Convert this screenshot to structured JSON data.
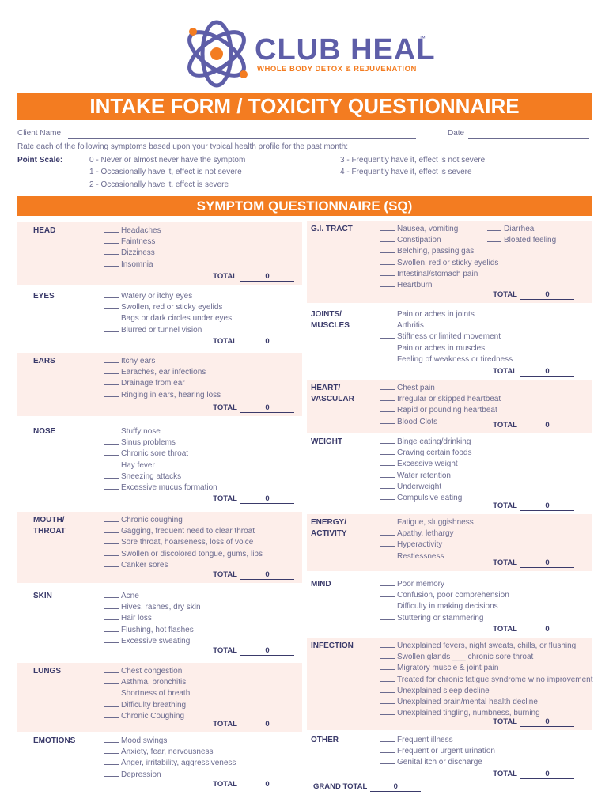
{
  "header": {
    "brand": "CLUB HEAL",
    "trademark": "™",
    "tagline": "WHOLE BODY DETOX & REJUVENATION"
  },
  "title": "INTAKE FORM / TOXICITY QUESTIONNAIRE",
  "client_name_label": "Client Name",
  "date_label": "Date",
  "instructions": "Rate each of the following symptoms based upon your typical health profile for the past month:",
  "point_scale": {
    "label": "Point Scale:",
    "items": [
      "0 - Never or almost never have the symptom",
      "1 - Occasionally have it, effect is not severe",
      "2 - Occasionally have it, effect is severe",
      "3 - Frequently have it, effect is not severe",
      "4 - Frequently have it, effect is severe"
    ]
  },
  "section_title": "SYMPTOM QUESTIONNAIRE (SQ)",
  "total_label": "TOTAL",
  "left_sections": [
    {
      "name": "HEAD",
      "items": [
        "Headaches",
        "Faintness",
        "Dizziness",
        "Insomnia"
      ],
      "total": 0
    },
    {
      "name": "EYES",
      "items": [
        "Watery or itchy eyes",
        "Swollen, red or sticky eyelids",
        "Bags or dark circles under eyes",
        "Blurred or tunnel vision"
      ],
      "total": 0
    },
    {
      "name": "EARS",
      "items": [
        "Itchy ears",
        "Earaches, ear infections",
        "Drainage from ear",
        "Ringing in ears, hearing loss"
      ],
      "total": 0
    },
    {
      "name": "NOSE",
      "items": [
        "Stuffy nose",
        "Sinus problems",
        "Chronic sore throat",
        "Hay fever",
        "Sneezing attacks",
        "Excessive mucus formation"
      ],
      "total": 0
    },
    {
      "name": "MOUTH/\nTHROAT",
      "items": [
        "Chronic coughing",
        "Gagging, frequent need to clear throat",
        "Sore throat, hoarseness, loss of voice",
        "Swollen or discolored tongue, gums, lips",
        "Canker sores"
      ],
      "total": 0
    },
    {
      "name": "SKIN",
      "items": [
        "Acne",
        "Hives, rashes, dry skin",
        "Hair loss",
        "Flushing, hot flashes",
        "Excessive sweating"
      ],
      "total": 0
    },
    {
      "name": "LUNGS",
      "items": [
        "Chest congestion",
        "Asthma, bronchitis",
        "Shortness of breath",
        "Difficulty breathing",
        "Chronic Coughing"
      ],
      "total": 0
    },
    {
      "name": "EMOTIONS",
      "items": [
        "Mood swings",
        "Anxiety, fear, nervousness",
        "Anger, irritability, aggressiveness",
        "Depression"
      ],
      "total": 0
    }
  ],
  "right_sections": [
    {
      "name": "G.I. TRACT",
      "items": [
        "Nausea, vomiting",
        "Constipation",
        "Belching, passing gas",
        "Swollen, red or sticky eyelids",
        "Intestinal/stomach pain",
        "Heartburn"
      ],
      "items_right": [
        "Diarrhea",
        "Bloated feeling"
      ],
      "total": 0
    },
    {
      "name": "JOINTS/\nMUSCLES",
      "items": [
        "Pain or aches in joints",
        "Arthritis",
        "Stiffness or limited movement",
        "Pain or aches in muscles",
        "Feeling of weakness or tiredness"
      ],
      "total": 0
    },
    {
      "name": "HEART/\nVASCULAR",
      "items": [
        "Chest pain",
        "Irregular or skipped heartbeat",
        "Rapid or pounding heartbeat",
        "Blood Clots"
      ],
      "total": 0
    },
    {
      "name": "WEIGHT",
      "items": [
        "Binge eating/drinking",
        "Craving certain foods",
        "Excessive weight",
        "Water retention",
        "Underweight",
        "Compulsive eating"
      ],
      "total": 0
    },
    {
      "name": "ENERGY/\nACTIVITY",
      "items": [
        "Fatigue, sluggishness",
        "Apathy, lethargy",
        "Hyperactivity",
        "Restlessness"
      ],
      "total": 0
    },
    {
      "name": "MIND",
      "items": [
        "Poor memory",
        "Confusion, poor comprehension",
        "Difficulty in making decisions",
        "Stuttering or stammering"
      ],
      "total": 0
    },
    {
      "name": "INFECTION",
      "items": [
        "Unexplained fevers, night sweats, chills, or flushing",
        "Swollen glands ___ chronic sore throat",
        "Migratory muscle & joint pain",
        "Treated for chronic fatigue syndrome w no improvement",
        "Unexplained sleep decline",
        "Unexplained  brain/mental health decline",
        "Unexplained tingling, numbness, burning"
      ],
      "total": 0
    },
    {
      "name": "OTHER",
      "items": [
        "Frequent illness",
        "Frequent or urgent urination",
        "Genital itch or discharge"
      ],
      "total": 0
    }
  ],
  "grand_total_label": "GRAND TOTAL",
  "grand_total": 0
}
